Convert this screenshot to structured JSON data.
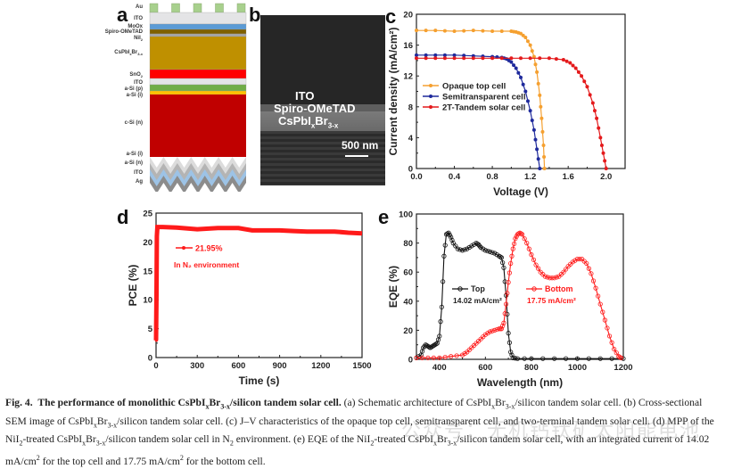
{
  "panels": {
    "a": {
      "letter": "a",
      "title": "Schematic architecture",
      "layers": [
        {
          "name": "Au",
          "color": "#a8d08d"
        },
        {
          "name": "ITO",
          "color": "#e4e4e6"
        },
        {
          "name": "MoOx",
          "color": "#5b9bd5"
        },
        {
          "name": "Spiro-OMeTAD",
          "color": "#7f6000"
        },
        {
          "name": "NiI2",
          "color": "#a6a6a6"
        },
        {
          "name": "CsPbIxBr3-x",
          "color": "#bf9000"
        },
        {
          "name": "SnO2",
          "color": "#ff0000"
        },
        {
          "name": "ITO",
          "color": "#e4e4e6"
        },
        {
          "name": "a-Si (p)",
          "color": "#70ad47"
        },
        {
          "name": "a-Si (i)",
          "color": "#ffc000"
        },
        {
          "name": "c-Si (n)",
          "color": "#c00000"
        },
        {
          "name": "a-Si (i)",
          "color": "#dcdcdc"
        },
        {
          "name": "a-Si (n)",
          "color": "#b4b4b4"
        },
        {
          "name": "ITO",
          "color": "#9dc3e6"
        },
        {
          "name": "Ag",
          "color": "#8c8c8c"
        }
      ],
      "labels": {
        "au": "Au",
        "ito_top": "ITO",
        "moox": "MoOx",
        "moox_sub": "x",
        "spiro": "Spiro-OMeTAD",
        "nii2": "NiI",
        "nii2_sub": "2",
        "cspbi": "CsPbI",
        "cspbi_sub1": "x",
        "cspbi_br": "Br",
        "cspbi_sub2": "3-x",
        "sno2": "SnO",
        "sno2_sub": "2",
        "ito_mid": "ITO",
        "asi_p": "a-Si (p)",
        "asi_i_top": "a-Si (i)",
        "csi": "c-Si (n)",
        "asi_i_bot": "a-Si (i)",
        "asi_n": "a-Si (n)",
        "ito_bot": "ITO",
        "ag": "Ag"
      }
    },
    "b": {
      "letter": "b",
      "labels": {
        "ito": "ITO",
        "spiro": "Spiro-OMeTAD",
        "cspbi": "CsPbI",
        "cspbi_sub1": "x",
        "cspbi_br": "Br",
        "cspbi_sub2": "3-x",
        "scale": "500 nm"
      }
    },
    "c": {
      "letter": "c"
    },
    "d": {
      "letter": "d"
    },
    "e": {
      "letter": "e"
    }
  },
  "chart_data": [
    {
      "id": "c",
      "type": "line",
      "title": "",
      "xlabel": "Voltage (V)",
      "ylabel": "Current density (mA/cm²)",
      "xlim": [
        0,
        2.2
      ],
      "ylim": [
        0,
        20
      ],
      "xticks": [
        0.0,
        0.4,
        0.8,
        1.2,
        1.6,
        2.0
      ],
      "xtick_labels": [
        "0.0",
        "0.4",
        "0.8",
        "1.2",
        "1.6",
        "2.0"
      ],
      "yticks": [
        0,
        4,
        8,
        12,
        16,
        20
      ],
      "ytick_labels": [
        "0",
        "4",
        "8",
        "12",
        "16",
        "20"
      ],
      "legend": "center-left",
      "series": [
        {
          "name": "Opaque top cell",
          "color": "#f5a030",
          "x": [
            0,
            0.2,
            0.4,
            0.6,
            0.8,
            1.0,
            1.05,
            1.1,
            1.15,
            1.2,
            1.24,
            1.27,
            1.3,
            1.32,
            1.34,
            1.35
          ],
          "y": [
            17.9,
            17.9,
            17.8,
            17.9,
            17.8,
            17.8,
            17.7,
            17.5,
            17.0,
            16.0,
            14.5,
            12.5,
            9.5,
            6.5,
            3.0,
            0
          ]
        },
        {
          "name": "Semitransparent cell",
          "color": "#1f2a9c",
          "x": [
            0,
            0.2,
            0.4,
            0.6,
            0.8,
            0.9,
            0.95,
            1.0,
            1.05,
            1.1,
            1.15,
            1.2,
            1.24,
            1.27,
            1.3
          ],
          "y": [
            14.7,
            14.7,
            14.7,
            14.6,
            14.5,
            14.4,
            14.2,
            13.8,
            13.0,
            11.8,
            10.0,
            7.5,
            5.0,
            2.5,
            0
          ]
        },
        {
          "name": "2T-Tandem solar cell",
          "color": "#e41a1c",
          "x": [
            0,
            0.2,
            0.4,
            0.6,
            0.8,
            1.0,
            1.2,
            1.4,
            1.55,
            1.62,
            1.68,
            1.74,
            1.8,
            1.86,
            1.9,
            1.94,
            1.97,
            2.0
          ],
          "y": [
            14.3,
            14.3,
            14.3,
            14.3,
            14.3,
            14.3,
            14.3,
            14.3,
            14.1,
            13.7,
            13.0,
            12.0,
            10.6,
            8.5,
            6.5,
            4.0,
            2.0,
            0
          ]
        }
      ]
    },
    {
      "id": "d",
      "type": "line",
      "title": "",
      "xlabel": "Time (s)",
      "ylabel": "PCE (%)",
      "xlim": [
        0,
        1500
      ],
      "ylim": [
        0,
        25
      ],
      "xticks": [
        0,
        300,
        600,
        900,
        1200,
        1500
      ],
      "xtick_labels": [
        "0",
        "300",
        "600",
        "900",
        "1200",
        "1500"
      ],
      "yticks": [
        0,
        5,
        10,
        15,
        20,
        25
      ],
      "ytick_labels": [
        "0",
        "5",
        "10",
        "15",
        "20",
        "25"
      ],
      "legend": "upper-left",
      "annotation": "In N₂ environment",
      "series": [
        {
          "name": "21.95%",
          "color": "#ff1a1a",
          "x": [
            0,
            3,
            6,
            10,
            50,
            150,
            300,
            450,
            600,
            700,
            800,
            900,
            1000,
            1100,
            1200,
            1300,
            1400,
            1500
          ],
          "y": [
            3,
            11,
            21,
            22.6,
            22.6,
            22.5,
            22.2,
            22.4,
            22.4,
            22.0,
            22.0,
            22.0,
            21.9,
            21.8,
            21.8,
            21.8,
            21.6,
            21.5
          ]
        }
      ]
    },
    {
      "id": "e",
      "type": "line",
      "title": "",
      "xlabel": "Wavelength (nm)",
      "ylabel": "EQE (%)",
      "xlim": [
        300,
        1200
      ],
      "ylim": [
        0,
        100
      ],
      "xticks": [
        400,
        600,
        800,
        1000,
        1200
      ],
      "xtick_labels": [
        "400",
        "600",
        "800",
        "1000",
        "1200"
      ],
      "yticks": [
        0,
        20,
        40,
        60,
        80,
        100
      ],
      "ytick_labels": [
        "0",
        "20",
        "40",
        "60",
        "80",
        "100"
      ],
      "legend": "center",
      "series": [
        {
          "name": "Top",
          "note": "14.02 mA/cm²",
          "color": "#111111",
          "x": [
            300,
            320,
            330,
            340,
            350,
            360,
            370,
            380,
            390,
            400,
            410,
            420,
            430,
            440,
            450,
            460,
            480,
            500,
            520,
            540,
            560,
            570,
            580,
            600,
            620,
            640,
            660,
            670,
            680,
            690,
            700,
            710,
            720,
            740,
            800,
            900,
            1000,
            1100,
            1200
          ],
          "y": [
            1,
            3,
            8,
            10,
            9,
            8,
            9,
            10,
            11,
            16,
            36,
            71,
            86,
            87,
            84,
            80,
            76,
            75,
            76,
            78,
            80,
            79,
            77,
            75,
            74,
            73,
            71,
            70,
            63,
            44,
            18,
            5,
            1,
            0.5,
            0.5,
            0.5,
            0.5,
            0.5,
            0.5
          ]
        },
        {
          "name": "Bottom",
          "note": "17.75 mA/cm²",
          "color": "#ff1a1a",
          "x": [
            300,
            350,
            400,
            450,
            500,
            520,
            540,
            560,
            580,
            600,
            620,
            640,
            660,
            670,
            680,
            690,
            700,
            710,
            720,
            730,
            740,
            750,
            760,
            780,
            800,
            820,
            840,
            860,
            880,
            900,
            920,
            940,
            960,
            980,
            1000,
            1020,
            1040,
            1060,
            1080,
            1100,
            1120,
            1140,
            1160,
            1180,
            1190
          ],
          "y": [
            1,
            1,
            1,
            2,
            3,
            5,
            8,
            11,
            14,
            17,
            19,
            20,
            21,
            21,
            25,
            38,
            53,
            66,
            76,
            83,
            86,
            87,
            86,
            80,
            72,
            65,
            60,
            57,
            56,
            56,
            57,
            60,
            64,
            67,
            69,
            69,
            66,
            59,
            49,
            38,
            27,
            16,
            7,
            2,
            1
          ]
        }
      ]
    }
  ],
  "caption": {
    "fig_label": "Fig. 4.",
    "bold_title_pre": "The performance of monolithic CsPbI",
    "bold_sub1": "x",
    "bold_br": "Br",
    "bold_sub2": "3-x",
    "bold_title_post": "/silicon tandem solar cell.",
    "line1_rest_pre": " (a) Schematic architecture of CsPbI",
    "line1_rest_post": "/silicon tandem solar cell. (b) Cross-sectional",
    "line2_pre": "SEM image of CsPbI",
    "line2_post": "/silicon tandem solar cell. (c) J–V characteristics of the opaque top cell, semitransparent cell, and two-terminal tandem solar cell. (d) MPP of the",
    "line3_pre": "NiI",
    "line3_sub": "2",
    "line3_mid": "-treated CsPbI",
    "line3_mid2": "/silicon tandem solar cell in N",
    "line3_n2sub": "2",
    "line3_mid3": " environment. (e) EQE of the NiI",
    "line3_mid4": "-treated CsPbI",
    "line3_post": "/silicon tandem solar cell, with an integrated current of 14.02",
    "line4_a": "mA/cm",
    "line4_sup": "2",
    "line4_b": " for the top cell and 17.75 mA/cm",
    "line4_c": " for the bottom cell.",
    "sub_x": "x",
    "br": "Br",
    "sub_3x": "3-x"
  },
  "watermark": "公众号：无机钙钛矿太阳能电池"
}
